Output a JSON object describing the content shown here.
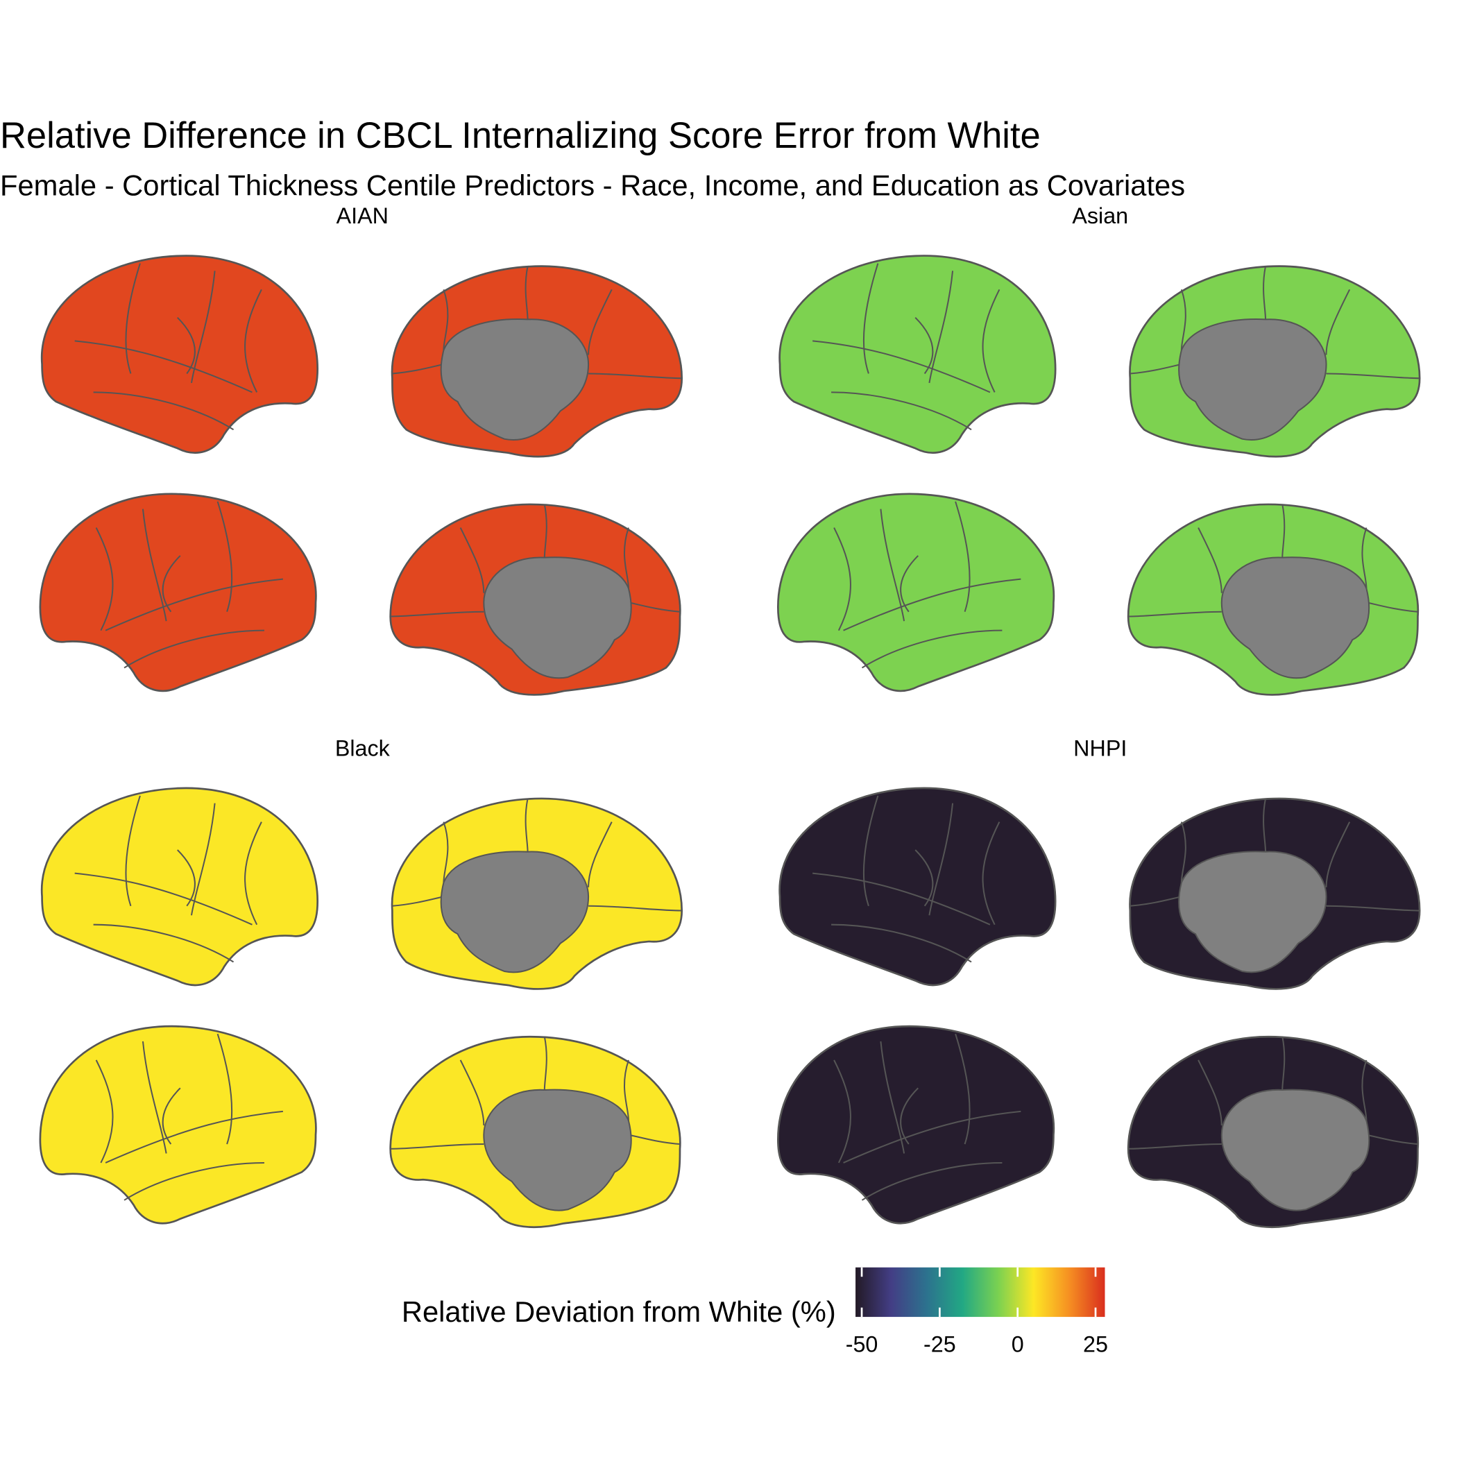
{
  "chart_data": {
    "type": "brain-map",
    "title": "Relative Difference in CBCL Internalizing Score Error from White",
    "subtitle": "Female - Cortical Thickness Centile Predictors - Race, Income, and Education as Covariates",
    "panels": [
      {
        "name": "AIAN",
        "value": 25
      },
      {
        "name": "Asian",
        "value": -6
      },
      {
        "name": "Black",
        "value": 5
      },
      {
        "name": "NHPI",
        "value": -51
      }
    ],
    "colorbar": {
      "label": "Relative Deviation from White (%)",
      "lim": [
        -52,
        28
      ],
      "ticks": [
        -50,
        -25,
        0,
        25
      ],
      "colors": [
        "#231a26",
        "#433e85",
        "#2c728e",
        "#22a884",
        "#7ad151",
        "#fde725",
        "#f68f22",
        "#d92e1e"
      ]
    },
    "medial_wall_color": "#808080",
    "outline_color": "#555555"
  }
}
